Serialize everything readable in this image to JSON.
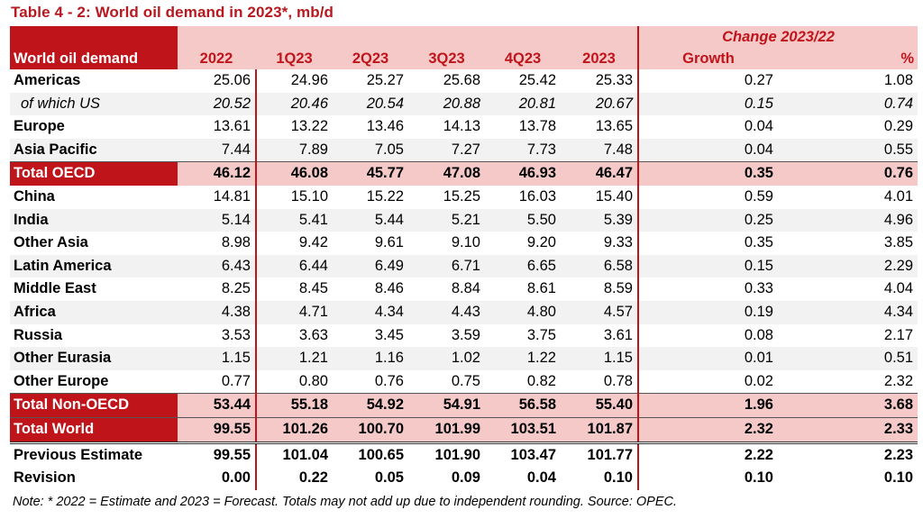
{
  "title": "Table 4 - 2: World oil demand in 2023*, mb/d",
  "header": {
    "change_group": "Change 2023/22",
    "row_label": "World oil demand",
    "columns": [
      "2022",
      "1Q23",
      "2Q23",
      "3Q23",
      "4Q23",
      "2023",
      "Growth",
      "%"
    ]
  },
  "rows": [
    {
      "label": "Americas",
      "values": [
        "25.06",
        "24.96",
        "25.27",
        "25.68",
        "25.42",
        "25.33",
        "0.27",
        "1.08"
      ]
    },
    {
      "label": "of which US",
      "values": [
        "20.52",
        "20.46",
        "20.54",
        "20.88",
        "20.81",
        "20.67",
        "0.15",
        "0.74"
      ]
    },
    {
      "label": "Europe",
      "values": [
        "13.61",
        "13.22",
        "13.46",
        "14.13",
        "13.78",
        "13.65",
        "0.04",
        "0.29"
      ]
    },
    {
      "label": "Asia Pacific",
      "values": [
        "7.44",
        "7.89",
        "7.05",
        "7.27",
        "7.73",
        "7.48",
        "0.04",
        "0.55"
      ]
    },
    {
      "label": "Total OECD",
      "values": [
        "46.12",
        "46.08",
        "45.77",
        "47.08",
        "46.93",
        "46.47",
        "0.35",
        "0.76"
      ]
    },
    {
      "label": "China",
      "values": [
        "14.81",
        "15.10",
        "15.22",
        "15.25",
        "16.03",
        "15.40",
        "0.59",
        "4.01"
      ]
    },
    {
      "label": "India",
      "values": [
        "5.14",
        "5.41",
        "5.44",
        "5.21",
        "5.50",
        "5.39",
        "0.25",
        "4.96"
      ]
    },
    {
      "label": "Other Asia",
      "values": [
        "8.98",
        "9.42",
        "9.61",
        "9.10",
        "9.20",
        "9.33",
        "0.35",
        "3.85"
      ]
    },
    {
      "label": "Latin America",
      "values": [
        "6.43",
        "6.44",
        "6.49",
        "6.71",
        "6.65",
        "6.58",
        "0.15",
        "2.29"
      ]
    },
    {
      "label": "Middle East",
      "values": [
        "8.25",
        "8.45",
        "8.46",
        "8.84",
        "8.61",
        "8.59",
        "0.33",
        "4.04"
      ]
    },
    {
      "label": "Africa",
      "values": [
        "4.38",
        "4.71",
        "4.34",
        "4.43",
        "4.80",
        "4.57",
        "0.19",
        "4.34"
      ]
    },
    {
      "label": "Russia",
      "values": [
        "3.53",
        "3.63",
        "3.45",
        "3.59",
        "3.75",
        "3.61",
        "0.08",
        "2.17"
      ]
    },
    {
      "label": "Other Eurasia",
      "values": [
        "1.15",
        "1.21",
        "1.16",
        "1.02",
        "1.22",
        "1.15",
        "0.01",
        "0.51"
      ]
    },
    {
      "label": "Other Europe",
      "values": [
        "0.77",
        "0.80",
        "0.76",
        "0.75",
        "0.82",
        "0.78",
        "0.02",
        "2.32"
      ]
    },
    {
      "label": "Total Non-OECD",
      "values": [
        "53.44",
        "55.18",
        "54.92",
        "54.91",
        "56.58",
        "55.40",
        "1.96",
        "3.68"
      ]
    },
    {
      "label": "Total World",
      "values": [
        "99.55",
        "101.26",
        "100.70",
        "101.99",
        "103.51",
        "101.87",
        "2.32",
        "2.33"
      ]
    },
    {
      "label": "Previous Estimate",
      "values": [
        "99.55",
        "101.04",
        "100.65",
        "101.90",
        "103.47",
        "101.77",
        "2.22",
        "2.23"
      ]
    },
    {
      "label": "Revision",
      "values": [
        "0.00",
        "0.22",
        "0.05",
        "0.09",
        "0.04",
        "0.10",
        "0.10",
        "0.10"
      ]
    }
  ],
  "note": "Note: * 2022 = Estimate and 2023 = Forecast. Totals may not add up due to independent rounding. Source: OPEC.",
  "colors": {
    "accent": "#c0141b",
    "header_fill": "#f6c9c9",
    "alt_fill": "#f2f2f2"
  }
}
